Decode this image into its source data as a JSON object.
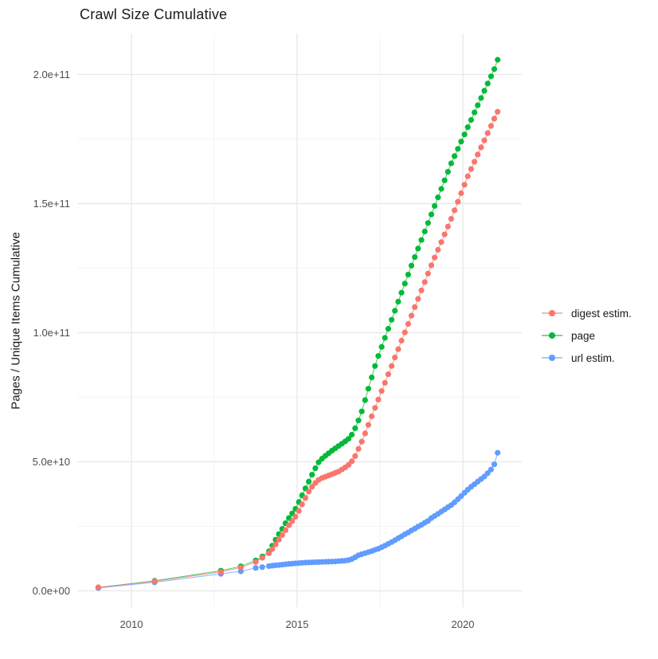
{
  "title": "Crawl Size Cumulative",
  "axes": {
    "y_title": "Pages / Unique Items Cumulative",
    "y_ticks": [
      {
        "label": "0.0e+00",
        "v": 0
      },
      {
        "label": "5.0e+10",
        "v": 50
      },
      {
        "label": "1.0e+11",
        "v": 100
      },
      {
        "label": "1.5e+11",
        "v": 150
      },
      {
        "label": "2.0e+11",
        "v": 200
      }
    ],
    "y_minor_v": [
      25,
      75,
      125,
      175
    ],
    "x_ticks": [
      {
        "label": "2010",
        "year": 2010
      },
      {
        "label": "2015",
        "year": 2015
      },
      {
        "label": "2020",
        "year": 2020
      }
    ],
    "x_minor_years": [
      2012.5,
      2017.5
    ]
  },
  "legend": [
    {
      "id": "digest",
      "label": "digest estim.",
      "color": "#F8766D"
    },
    {
      "id": "page",
      "label": "page",
      "color": "#00BA38"
    },
    {
      "id": "url",
      "label": "url estim.",
      "color": "#619CFF"
    }
  ],
  "colors": {
    "digest": "#F8766D",
    "page": "#00BA38",
    "url": "#619CFF",
    "grid_major": "#E7E7E7",
    "grid_minor": "#F1F1F1",
    "tick_text": "#4D4D4D",
    "title_text": "#1A1A1A"
  },
  "chart_data": {
    "type": "scatter",
    "title": "Crawl Size Cumulative",
    "xlabel": "",
    "ylabel": "Pages / Unique Items Cumulative",
    "value_unit": "value_e9 means value × 1e9 pages/items",
    "xlim": [
      2008.6,
      2021.8
    ],
    "ylim_e9": [
      -6,
      216
    ],
    "grid": true,
    "legend_position": "right",
    "series": [
      {
        "name": "digest estim.",
        "color": "#F8766D",
        "points_year_value_e9": [
          [
            2009.0,
            1.4
          ],
          [
            2010.7,
            3.7
          ],
          [
            2012.7,
            7.3
          ],
          [
            2013.3,
            9.0
          ],
          [
            2013.75,
            11.2
          ],
          [
            2013.95,
            12.8
          ],
          [
            2014.15,
            14.6
          ],
          [
            2014.25,
            16.2
          ],
          [
            2014.35,
            18.0
          ],
          [
            2014.45,
            19.8
          ],
          [
            2014.55,
            21.6
          ],
          [
            2014.65,
            23.5
          ],
          [
            2014.75,
            25.4
          ],
          [
            2014.85,
            27.0
          ],
          [
            2014.95,
            28.7
          ],
          [
            2015.05,
            31.0
          ],
          [
            2015.15,
            33.5
          ],
          [
            2015.25,
            36.0
          ],
          [
            2015.35,
            38.5
          ],
          [
            2015.45,
            40.3
          ],
          [
            2015.55,
            41.8
          ],
          [
            2015.65,
            43.0
          ],
          [
            2015.75,
            43.7
          ],
          [
            2015.85,
            44.2
          ],
          [
            2015.95,
            44.7
          ],
          [
            2016.05,
            45.2
          ],
          [
            2016.15,
            45.7
          ],
          [
            2016.25,
            46.2
          ],
          [
            2016.35,
            47.0
          ],
          [
            2016.45,
            47.8
          ],
          [
            2016.55,
            48.8
          ],
          [
            2016.65,
            50.2
          ],
          [
            2016.75,
            52.2
          ],
          [
            2016.85,
            55.0
          ],
          [
            2016.95,
            57.8
          ],
          [
            2017.05,
            61.0
          ],
          [
            2017.15,
            64.3
          ],
          [
            2017.25,
            67.6
          ],
          [
            2017.35,
            70.9
          ],
          [
            2017.45,
            74.1
          ],
          [
            2017.55,
            77.4
          ],
          [
            2017.65,
            80.6
          ],
          [
            2017.75,
            83.9
          ],
          [
            2017.85,
            87.1
          ],
          [
            2017.95,
            90.4
          ],
          [
            2018.05,
            93.6
          ],
          [
            2018.15,
            96.9
          ],
          [
            2018.25,
            100.1
          ],
          [
            2018.35,
            103.4
          ],
          [
            2018.45,
            106.6
          ],
          [
            2018.55,
            109.9
          ],
          [
            2018.65,
            113.1
          ],
          [
            2018.75,
            116.4
          ],
          [
            2018.85,
            119.6
          ],
          [
            2018.95,
            122.9
          ],
          [
            2019.05,
            126.1
          ],
          [
            2019.15,
            129.1
          ],
          [
            2019.25,
            132.1
          ],
          [
            2019.35,
            135.1
          ],
          [
            2019.45,
            138.1
          ],
          [
            2019.55,
            141.1
          ],
          [
            2019.65,
            144.1
          ],
          [
            2019.75,
            147.4
          ],
          [
            2019.85,
            150.7
          ],
          [
            2019.95,
            154.0
          ],
          [
            2020.05,
            157.3
          ],
          [
            2020.15,
            160.6
          ],
          [
            2020.25,
            163.4
          ],
          [
            2020.35,
            166.2
          ],
          [
            2020.45,
            169.0
          ],
          [
            2020.55,
            171.8
          ],
          [
            2020.65,
            174.5
          ],
          [
            2020.75,
            177.3
          ],
          [
            2020.85,
            180.1
          ],
          [
            2020.95,
            182.9
          ],
          [
            2021.05,
            185.6
          ]
        ]
      },
      {
        "name": "page",
        "color": "#00BA38",
        "points_year_value_e9": [
          [
            2009.0,
            1.3
          ],
          [
            2010.7,
            3.9
          ],
          [
            2012.7,
            7.8
          ],
          [
            2013.3,
            9.5
          ],
          [
            2013.75,
            11.8
          ],
          [
            2013.95,
            13.3
          ],
          [
            2014.15,
            15.3
          ],
          [
            2014.25,
            17.5
          ],
          [
            2014.35,
            19.8
          ],
          [
            2014.45,
            22.0
          ],
          [
            2014.55,
            24.0
          ],
          [
            2014.65,
            26.2
          ],
          [
            2014.75,
            28.2
          ],
          [
            2014.85,
            30.0
          ],
          [
            2014.95,
            31.8
          ],
          [
            2015.05,
            34.4
          ],
          [
            2015.15,
            37.0
          ],
          [
            2015.25,
            39.7
          ],
          [
            2015.35,
            42.3
          ],
          [
            2015.45,
            45.0
          ],
          [
            2015.55,
            47.5
          ],
          [
            2015.65,
            49.8
          ],
          [
            2015.75,
            51.2
          ],
          [
            2015.85,
            52.3
          ],
          [
            2015.95,
            53.3
          ],
          [
            2016.05,
            54.3
          ],
          [
            2016.15,
            55.2
          ],
          [
            2016.25,
            56.1
          ],
          [
            2016.35,
            57.0
          ],
          [
            2016.45,
            57.9
          ],
          [
            2016.55,
            58.9
          ],
          [
            2016.65,
            60.5
          ],
          [
            2016.75,
            63.0
          ],
          [
            2016.85,
            66.0
          ],
          [
            2016.95,
            69.5
          ],
          [
            2017.05,
            73.9
          ],
          [
            2017.15,
            78.3
          ],
          [
            2017.25,
            82.7
          ],
          [
            2017.35,
            87.1
          ],
          [
            2017.45,
            91.0
          ],
          [
            2017.55,
            94.5
          ],
          [
            2017.65,
            98.0
          ],
          [
            2017.75,
            101.5
          ],
          [
            2017.85,
            105.0
          ],
          [
            2017.95,
            108.5
          ],
          [
            2018.05,
            112.0
          ],
          [
            2018.15,
            115.5
          ],
          [
            2018.25,
            119.0
          ],
          [
            2018.35,
            122.5
          ],
          [
            2018.45,
            126.0
          ],
          [
            2018.55,
            129.3
          ],
          [
            2018.65,
            132.6
          ],
          [
            2018.75,
            135.9
          ],
          [
            2018.85,
            139.2
          ],
          [
            2018.95,
            142.5
          ],
          [
            2019.05,
            145.8
          ],
          [
            2019.15,
            149.1
          ],
          [
            2019.25,
            152.4
          ],
          [
            2019.35,
            155.7
          ],
          [
            2019.45,
            159.0
          ],
          [
            2019.55,
            162.3
          ],
          [
            2019.65,
            165.6
          ],
          [
            2019.75,
            168.4
          ],
          [
            2019.85,
            171.2
          ],
          [
            2019.95,
            174.0
          ],
          [
            2020.05,
            176.8
          ],
          [
            2020.15,
            179.6
          ],
          [
            2020.25,
            182.4
          ],
          [
            2020.35,
            185.3
          ],
          [
            2020.45,
            188.1
          ],
          [
            2020.55,
            190.9
          ],
          [
            2020.65,
            193.7
          ],
          [
            2020.75,
            196.5
          ],
          [
            2020.85,
            199.3
          ],
          [
            2020.95,
            202.1
          ],
          [
            2021.05,
            205.7
          ]
        ]
      },
      {
        "name": "url estim.",
        "color": "#619CFF",
        "points_year_value_e9": [
          [
            2009.0,
            1.1
          ],
          [
            2010.7,
            3.3
          ],
          [
            2012.7,
            6.6
          ],
          [
            2013.3,
            7.6
          ],
          [
            2013.75,
            8.9
          ],
          [
            2013.95,
            9.2
          ],
          [
            2014.15,
            9.6
          ],
          [
            2014.25,
            9.75
          ],
          [
            2014.35,
            9.9
          ],
          [
            2014.45,
            10.0
          ],
          [
            2014.55,
            10.15
          ],
          [
            2014.65,
            10.3
          ],
          [
            2014.75,
            10.45
          ],
          [
            2014.85,
            10.55
          ],
          [
            2014.95,
            10.65
          ],
          [
            2015.05,
            10.75
          ],
          [
            2015.15,
            10.85
          ],
          [
            2015.25,
            10.95
          ],
          [
            2015.35,
            11.0
          ],
          [
            2015.45,
            11.05
          ],
          [
            2015.55,
            11.1
          ],
          [
            2015.65,
            11.15
          ],
          [
            2015.75,
            11.2
          ],
          [
            2015.85,
            11.25
          ],
          [
            2015.95,
            11.3
          ],
          [
            2016.05,
            11.35
          ],
          [
            2016.15,
            11.4
          ],
          [
            2016.25,
            11.5
          ],
          [
            2016.35,
            11.6
          ],
          [
            2016.45,
            11.7
          ],
          [
            2016.55,
            11.9
          ],
          [
            2016.65,
            12.3
          ],
          [
            2016.75,
            13.0
          ],
          [
            2016.85,
            13.8
          ],
          [
            2016.95,
            14.2
          ],
          [
            2017.05,
            14.6
          ],
          [
            2017.15,
            15.0
          ],
          [
            2017.25,
            15.4
          ],
          [
            2017.35,
            15.9
          ],
          [
            2017.45,
            16.3
          ],
          [
            2017.55,
            16.9
          ],
          [
            2017.65,
            17.5
          ],
          [
            2017.75,
            18.2
          ],
          [
            2017.85,
            18.9
          ],
          [
            2017.95,
            19.6
          ],
          [
            2018.05,
            20.4
          ],
          [
            2018.15,
            21.1
          ],
          [
            2018.25,
            21.9
          ],
          [
            2018.35,
            22.6
          ],
          [
            2018.45,
            23.4
          ],
          [
            2018.55,
            24.1
          ],
          [
            2018.65,
            24.9
          ],
          [
            2018.75,
            25.6
          ],
          [
            2018.85,
            26.4
          ],
          [
            2018.95,
            27.1
          ],
          [
            2019.05,
            28.2
          ],
          [
            2019.15,
            29.0
          ],
          [
            2019.25,
            29.8
          ],
          [
            2019.35,
            30.7
          ],
          [
            2019.45,
            31.5
          ],
          [
            2019.55,
            32.4
          ],
          [
            2019.65,
            33.2
          ],
          [
            2019.75,
            34.3
          ],
          [
            2019.85,
            35.5
          ],
          [
            2019.95,
            36.7
          ],
          [
            2020.05,
            38.0
          ],
          [
            2020.15,
            39.2
          ],
          [
            2020.25,
            40.3
          ],
          [
            2020.35,
            41.3
          ],
          [
            2020.45,
            42.3
          ],
          [
            2020.55,
            43.3
          ],
          [
            2020.65,
            44.3
          ],
          [
            2020.75,
            45.6
          ],
          [
            2020.85,
            47.0
          ],
          [
            2020.95,
            49.0
          ],
          [
            2021.05,
            53.5
          ]
        ]
      }
    ]
  }
}
